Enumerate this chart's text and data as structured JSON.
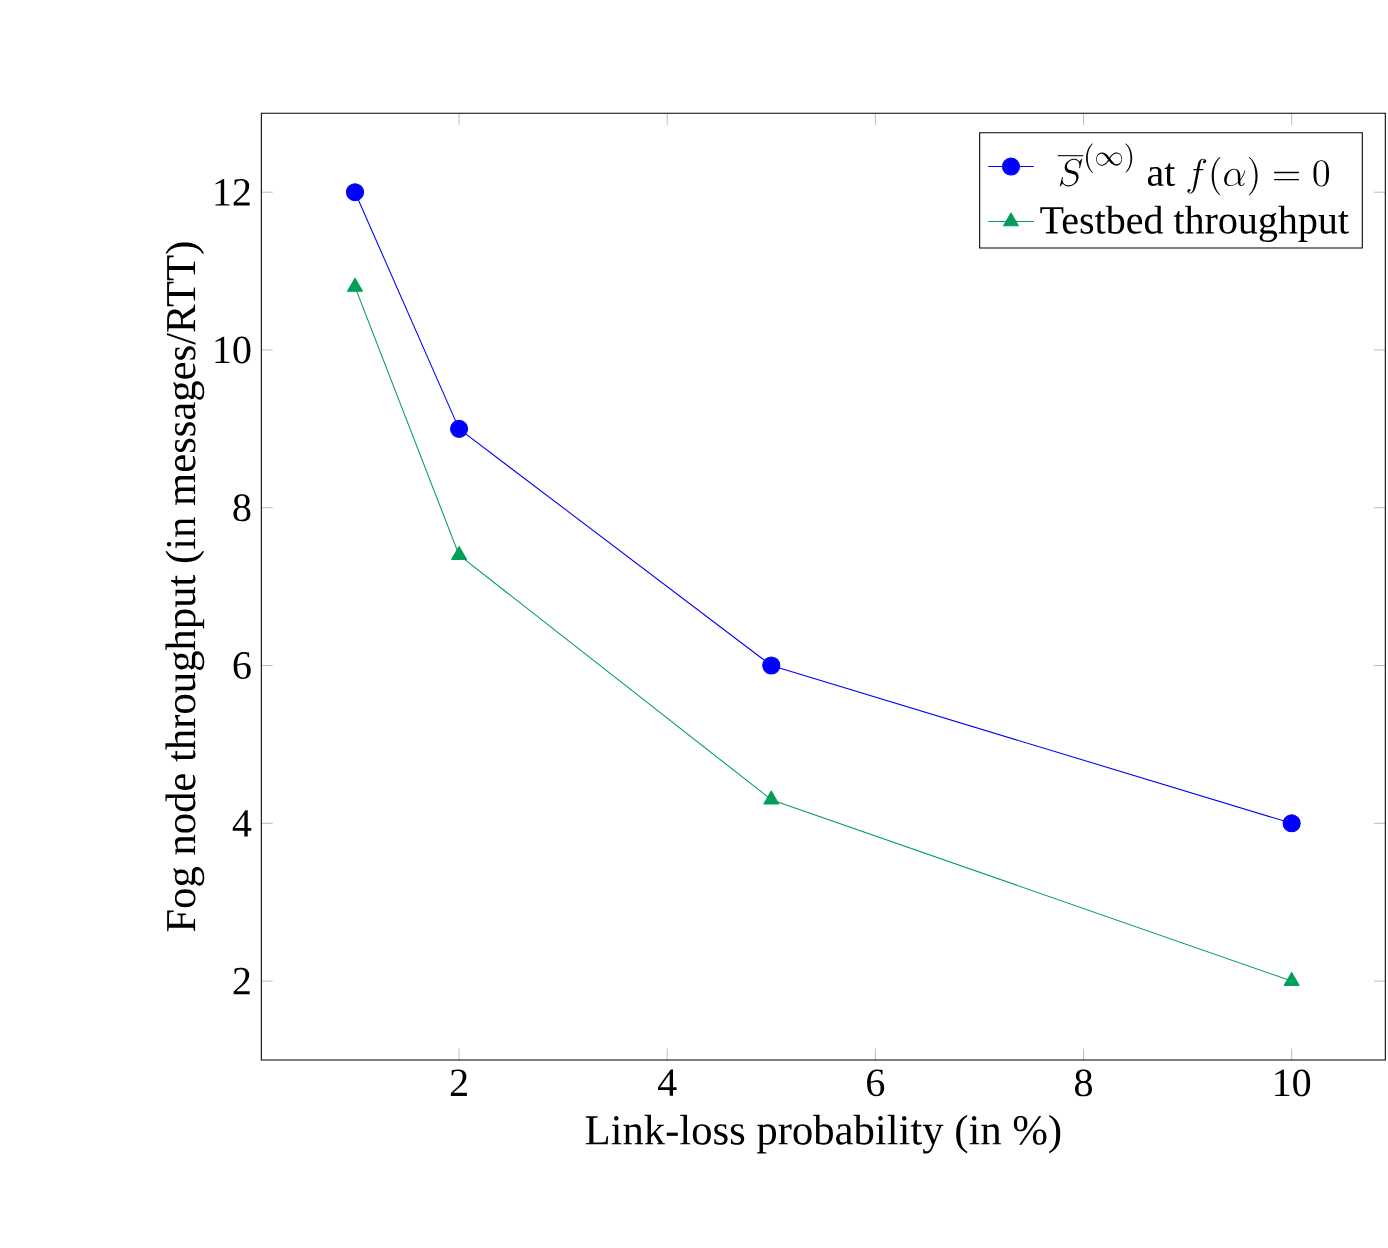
{
  "chart_data": {
    "type": "line",
    "xlabel": "Link-loss probability (in %)",
    "ylabel": "Fog node throughput (in messages/RTT)",
    "xlim": [
      0.1,
      10.9
    ],
    "ylim": [
      1,
      13
    ],
    "xticks": [
      2,
      4,
      6,
      8,
      10
    ],
    "yticks": [
      2,
      4,
      6,
      8,
      10,
      12
    ],
    "legend": "top right",
    "grid": false,
    "series": [
      {
        "name": "\\overline{S}^{(\\infty)}\\mbox{ at }f(\\alpha)=0",
        "color": "#0000ff",
        "marker": "circle",
        "x": [
          1,
          2,
          5,
          10
        ],
        "values": [
          12,
          9,
          6,
          4
        ]
      },
      {
        "name": "Testbed throughput",
        "color": "#009e5a",
        "marker": "triangle",
        "x": [
          1,
          2,
          5,
          10
        ],
        "values": [
          10.8,
          7.4,
          4.3,
          2.0
        ]
      }
    ]
  }
}
